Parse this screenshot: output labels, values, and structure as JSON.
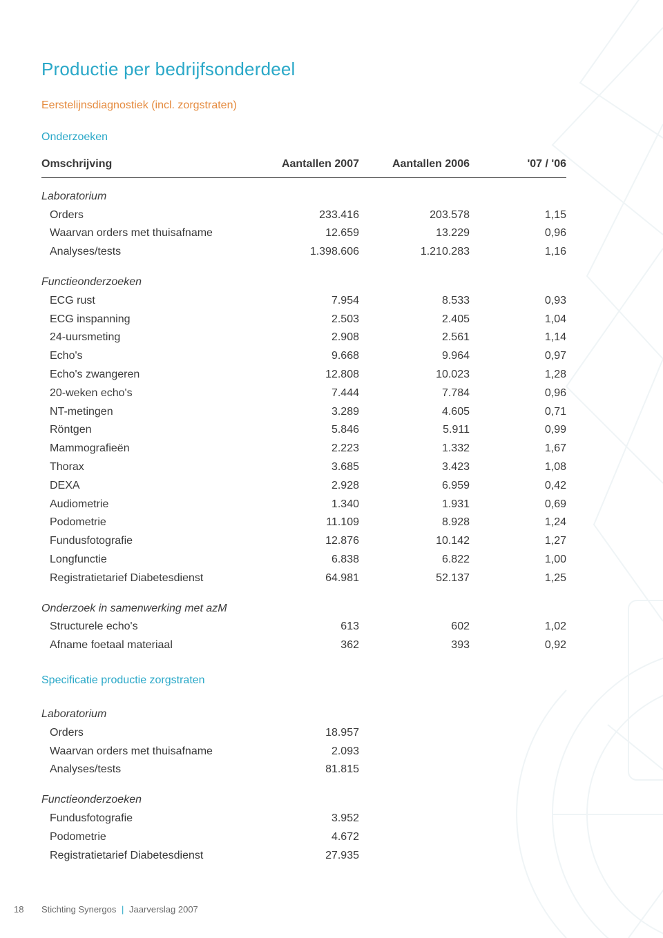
{
  "colors": {
    "title": "#2aa8c8",
    "subtitle": "#e58b3f",
    "section_label": "#2aa8c8",
    "text": "#3a3a3a",
    "bg_art_stroke": "#a8c7cf"
  },
  "title": "Productie per bedrijfsonderdeel",
  "subtitle": "Eerstelijnsdiagnostiek (incl. zorgstraten)",
  "section_label": "Onderzoeken",
  "header": {
    "c0": "Omschrijving",
    "c1": "Aantallen 2007",
    "c2": "Aantallen 2006",
    "c3": "'07 / '06"
  },
  "groups": [
    {
      "name": "Laboratorium",
      "rows": [
        {
          "label": "Orders",
          "v1": "233.416",
          "v2": "203.578",
          "v3": "1,15"
        },
        {
          "label": "Waarvan orders met thuisafname",
          "v1": "12.659",
          "v2": "13.229",
          "v3": "0,96"
        },
        {
          "label": "Analyses/tests",
          "v1": "1.398.606",
          "v2": "1.210.283",
          "v3": "1,16"
        }
      ]
    },
    {
      "name": "Functieonderzoeken",
      "rows": [
        {
          "label": "ECG rust",
          "v1": "7.954",
          "v2": "8.533",
          "v3": "0,93"
        },
        {
          "label": "ECG inspanning",
          "v1": "2.503",
          "v2": "2.405",
          "v3": "1,04"
        },
        {
          "label": "24-uursmeting",
          "v1": "2.908",
          "v2": "2.561",
          "v3": "1,14"
        },
        {
          "label": "Echo's",
          "v1": "9.668",
          "v2": "9.964",
          "v3": "0,97"
        },
        {
          "label": "Echo's zwangeren",
          "v1": "12.808",
          "v2": "10.023",
          "v3": "1,28"
        },
        {
          "label": "20-weken echo's",
          "v1": "7.444",
          "v2": "7.784",
          "v3": "0,96"
        },
        {
          "label": "NT-metingen",
          "v1": "3.289",
          "v2": "4.605",
          "v3": "0,71"
        },
        {
          "label": "Röntgen",
          "v1": "5.846",
          "v2": "5.911",
          "v3": "0,99"
        },
        {
          "label": "Mammografieën",
          "v1": "2.223",
          "v2": "1.332",
          "v3": "1,67"
        },
        {
          "label": "Thorax",
          "v1": "3.685",
          "v2": "3.423",
          "v3": "1,08"
        },
        {
          "label": "DEXA",
          "v1": "2.928",
          "v2": "6.959",
          "v3": "0,42"
        },
        {
          "label": "Audiometrie",
          "v1": "1.340",
          "v2": "1.931",
          "v3": "0,69"
        },
        {
          "label": "Podometrie",
          "v1": "11.109",
          "v2": "8.928",
          "v3": "1,24"
        },
        {
          "label": "Fundusfotografie",
          "v1": "12.876",
          "v2": "10.142",
          "v3": "1,27"
        },
        {
          "label": "Longfunctie",
          "v1": "6.838",
          "v2": "6.822",
          "v3": "1,00"
        },
        {
          "label": "Registratietarief Diabetesdienst",
          "v1": "64.981",
          "v2": "52.137",
          "v3": "1,25"
        }
      ]
    },
    {
      "name": "Onderzoek in samenwerking met azM",
      "rows": [
        {
          "label": "Structurele echo's",
          "v1": "613",
          "v2": "602",
          "v3": "1,02"
        },
        {
          "label": "Afname foetaal materiaal",
          "v1": "362",
          "v2": "393",
          "v3": "0,92"
        }
      ]
    }
  ],
  "spec_heading": "Specificatie productie zorgstraten",
  "spec_groups": [
    {
      "name": "Laboratorium",
      "rows": [
        {
          "label": "Orders",
          "v1": "18.957"
        },
        {
          "label": "Waarvan orders met thuisafname",
          "v1": "2.093"
        },
        {
          "label": "Analyses/tests",
          "v1": "81.815"
        }
      ]
    },
    {
      "name": "Functieonderzoeken",
      "rows": [
        {
          "label": "Fundusfotografie",
          "v1": "3.952"
        },
        {
          "label": "Podometrie",
          "v1": "4.672"
        },
        {
          "label": "Registratietarief Diabetesdienst",
          "v1": "27.935"
        }
      ]
    }
  ],
  "footer": {
    "page": "18",
    "org": "Stichting Synergos",
    "doc": "Jaarverslag 2007"
  }
}
